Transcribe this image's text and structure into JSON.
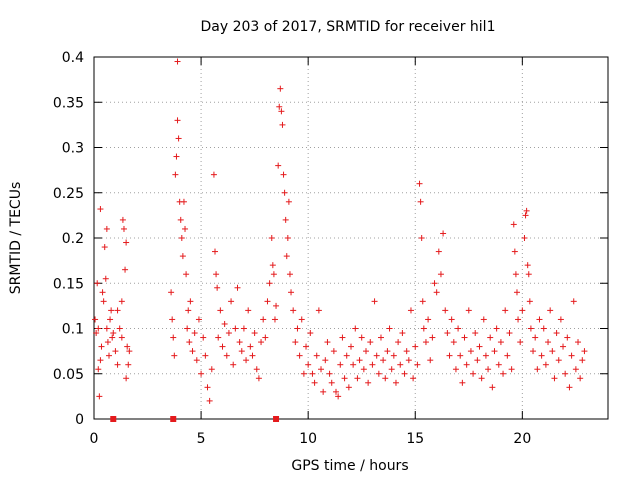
{
  "chart_data": {
    "type": "scatter",
    "title": "Day 203 of 2017, SRMTID for receiver hil1",
    "xlabel": "GPS time / hours",
    "ylabel": "SRMTID / TECUs",
    "xlim": [
      0,
      24
    ],
    "ylim": [
      0,
      0.4
    ],
    "xticks": [
      0,
      5,
      10,
      15,
      20
    ],
    "yticks": [
      0,
      0.05,
      0.1,
      0.15,
      0.2,
      0.25,
      0.3,
      0.35,
      0.4
    ],
    "xtick_labels": [
      "0",
      "5",
      "10",
      "15",
      "20"
    ],
    "ytick_labels": [
      "0",
      "0.05",
      "0.1",
      "0.15",
      "0.2",
      "0.25",
      "0.3",
      "0.35",
      "0.4"
    ],
    "grid": true,
    "marker": "+",
    "color": "#e41a1c",
    "square_marks_at_zero": [
      0.9,
      3.7,
      8.5
    ],
    "series": [
      {
        "points": [
          [
            0.05,
            0.11
          ],
          [
            0.1,
            0.095
          ],
          [
            0.15,
            0.15
          ],
          [
            0.2,
            0.055
          ],
          [
            0.25,
            0.025
          ],
          [
            0.3,
            0.232
          ],
          [
            0.35,
            0.08
          ],
          [
            0.4,
            0.14
          ],
          [
            0.45,
            0.13
          ],
          [
            0.5,
            0.19
          ],
          [
            0.55,
            0.155
          ],
          [
            0.6,
            0.21
          ],
          [
            0.65,
            0.085
          ],
          [
            0.7,
            0.07
          ],
          [
            0.75,
            0.11
          ],
          [
            0.8,
            0.12
          ],
          [
            0.85,
            0.09
          ],
          [
            1.0,
            0.075
          ],
          [
            1.1,
            0.12
          ],
          [
            1.2,
            0.1
          ],
          [
            1.3,
            0.09
          ],
          [
            1.35,
            0.22
          ],
          [
            1.4,
            0.21
          ],
          [
            1.45,
            0.165
          ],
          [
            1.5,
            0.195
          ],
          [
            1.55,
            0.08
          ],
          [
            1.6,
            0.06
          ],
          [
            1.65,
            0.075
          ],
          [
            1.5,
            0.045
          ],
          [
            1.3,
            0.13
          ],
          [
            0.2,
            0.1
          ],
          [
            0.3,
            0.065
          ],
          [
            0.6,
            0.1
          ],
          [
            0.9,
            0.095
          ],
          [
            1.1,
            0.06
          ],
          [
            3.6,
            0.14
          ],
          [
            3.65,
            0.11
          ],
          [
            3.7,
            0.09
          ],
          [
            3.75,
            0.07
          ],
          [
            3.8,
            0.27
          ],
          [
            3.85,
            0.29
          ],
          [
            3.9,
            0.395
          ],
          [
            3.9,
            0.33
          ],
          [
            3.95,
            0.31
          ],
          [
            4.0,
            0.24
          ],
          [
            4.05,
            0.22
          ],
          [
            4.1,
            0.2
          ],
          [
            4.15,
            0.18
          ],
          [
            4.2,
            0.24
          ],
          [
            4.25,
            0.21
          ],
          [
            4.3,
            0.16
          ],
          [
            4.35,
            0.1
          ],
          [
            4.4,
            0.12
          ],
          [
            4.45,
            0.085
          ],
          [
            4.5,
            0.13
          ],
          [
            4.6,
            0.075
          ],
          [
            4.7,
            0.095
          ],
          [
            4.8,
            0.065
          ],
          [
            4.9,
            0.11
          ],
          [
            5.0,
            0.05
          ],
          [
            5.1,
            0.09
          ],
          [
            5.2,
            0.07
          ],
          [
            5.3,
            0.035
          ],
          [
            5.4,
            0.02
          ],
          [
            5.5,
            0.055
          ],
          [
            5.6,
            0.27
          ],
          [
            5.65,
            0.185
          ],
          [
            5.7,
            0.16
          ],
          [
            5.75,
            0.145
          ],
          [
            5.8,
            0.09
          ],
          [
            5.9,
            0.12
          ],
          [
            6.0,
            0.08
          ],
          [
            6.1,
            0.105
          ],
          [
            6.2,
            0.07
          ],
          [
            6.3,
            0.095
          ],
          [
            6.4,
            0.13
          ],
          [
            6.5,
            0.06
          ],
          [
            6.6,
            0.1
          ],
          [
            6.7,
            0.145
          ],
          [
            6.8,
            0.085
          ],
          [
            6.9,
            0.075
          ],
          [
            7.0,
            0.1
          ],
          [
            7.1,
            0.065
          ],
          [
            7.2,
            0.12
          ],
          [
            7.3,
            0.08
          ],
          [
            7.4,
            0.07
          ],
          [
            7.5,
            0.095
          ],
          [
            7.6,
            0.055
          ],
          [
            7.7,
            0.045
          ],
          [
            7.8,
            0.085
          ],
          [
            7.9,
            0.11
          ],
          [
            8.0,
            0.09
          ],
          [
            8.1,
            0.13
          ],
          [
            8.2,
            0.15
          ],
          [
            8.3,
            0.2
          ],
          [
            8.35,
            0.17
          ],
          [
            8.4,
            0.16
          ],
          [
            8.45,
            0.11
          ],
          [
            8.5,
            0.125
          ],
          [
            8.6,
            0.28
          ],
          [
            8.65,
            0.345
          ],
          [
            8.7,
            0.365
          ],
          [
            8.75,
            0.34
          ],
          [
            8.8,
            0.325
          ],
          [
            8.85,
            0.27
          ],
          [
            8.9,
            0.25
          ],
          [
            8.95,
            0.22
          ],
          [
            9.0,
            0.18
          ],
          [
            9.05,
            0.2
          ],
          [
            9.1,
            0.24
          ],
          [
            9.15,
            0.16
          ],
          [
            9.2,
            0.14
          ],
          [
            9.3,
            0.12
          ],
          [
            9.4,
            0.085
          ],
          [
            9.5,
            0.1
          ],
          [
            9.6,
            0.07
          ],
          [
            9.7,
            0.11
          ],
          [
            9.8,
            0.05
          ],
          [
            9.9,
            0.08
          ],
          [
            10.0,
            0.06
          ],
          [
            10.1,
            0.095
          ],
          [
            10.2,
            0.05
          ],
          [
            10.3,
            0.04
          ],
          [
            10.4,
            0.07
          ],
          [
            10.5,
            0.12
          ],
          [
            10.6,
            0.055
          ],
          [
            10.7,
            0.03
          ],
          [
            10.8,
            0.065
          ],
          [
            10.9,
            0.085
          ],
          [
            11.0,
            0.05
          ],
          [
            11.1,
            0.04
          ],
          [
            11.2,
            0.075
          ],
          [
            11.3,
            0.03
          ],
          [
            11.4,
            0.025
          ],
          [
            11.5,
            0.06
          ],
          [
            11.6,
            0.09
          ],
          [
            11.7,
            0.045
          ],
          [
            11.8,
            0.07
          ],
          [
            11.9,
            0.035
          ],
          [
            12.0,
            0.08
          ],
          [
            12.1,
            0.06
          ],
          [
            12.2,
            0.1
          ],
          [
            12.3,
            0.045
          ],
          [
            12.4,
            0.065
          ],
          [
            12.5,
            0.09
          ],
          [
            12.6,
            0.055
          ],
          [
            12.7,
            0.075
          ],
          [
            12.8,
            0.04
          ],
          [
            12.9,
            0.085
          ],
          [
            13.0,
            0.06
          ],
          [
            13.1,
            0.13
          ],
          [
            13.2,
            0.07
          ],
          [
            13.3,
            0.05
          ],
          [
            13.4,
            0.09
          ],
          [
            13.5,
            0.065
          ],
          [
            13.6,
            0.045
          ],
          [
            13.7,
            0.075
          ],
          [
            13.8,
            0.1
          ],
          [
            13.9,
            0.055
          ],
          [
            14.0,
            0.07
          ],
          [
            14.1,
            0.04
          ],
          [
            14.2,
            0.085
          ],
          [
            14.3,
            0.06
          ],
          [
            14.4,
            0.095
          ],
          [
            14.5,
            0.05
          ],
          [
            14.6,
            0.075
          ],
          [
            14.7,
            0.065
          ],
          [
            14.8,
            0.12
          ],
          [
            14.9,
            0.045
          ],
          [
            15.0,
            0.08
          ],
          [
            15.1,
            0.06
          ],
          [
            15.2,
            0.26
          ],
          [
            15.25,
            0.24
          ],
          [
            15.3,
            0.2
          ],
          [
            15.35,
            0.13
          ],
          [
            15.4,
            0.1
          ],
          [
            15.5,
            0.085
          ],
          [
            15.6,
            0.11
          ],
          [
            15.7,
            0.065
          ],
          [
            15.8,
            0.09
          ],
          [
            15.9,
            0.15
          ],
          [
            16.0,
            0.14
          ],
          [
            16.1,
            0.185
          ],
          [
            16.2,
            0.16
          ],
          [
            16.3,
            0.205
          ],
          [
            16.4,
            0.12
          ],
          [
            16.5,
            0.095
          ],
          [
            16.6,
            0.07
          ],
          [
            16.7,
            0.11
          ],
          [
            16.8,
            0.085
          ],
          [
            16.9,
            0.055
          ],
          [
            17.0,
            0.1
          ],
          [
            17.1,
            0.07
          ],
          [
            17.2,
            0.04
          ],
          [
            17.3,
            0.09
          ],
          [
            17.4,
            0.06
          ],
          [
            17.5,
            0.12
          ],
          [
            17.6,
            0.075
          ],
          [
            17.7,
            0.05
          ],
          [
            17.8,
            0.095
          ],
          [
            17.9,
            0.065
          ],
          [
            18.0,
            0.08
          ],
          [
            18.1,
            0.045
          ],
          [
            18.2,
            0.11
          ],
          [
            18.3,
            0.07
          ],
          [
            18.4,
            0.055
          ],
          [
            18.5,
            0.09
          ],
          [
            18.6,
            0.035
          ],
          [
            18.7,
            0.075
          ],
          [
            18.8,
            0.1
          ],
          [
            18.9,
            0.06
          ],
          [
            19.0,
            0.085
          ],
          [
            19.1,
            0.05
          ],
          [
            19.2,
            0.12
          ],
          [
            19.3,
            0.07
          ],
          [
            19.4,
            0.095
          ],
          [
            19.5,
            0.055
          ],
          [
            19.6,
            0.215
          ],
          [
            19.65,
            0.185
          ],
          [
            19.7,
            0.16
          ],
          [
            19.75,
            0.14
          ],
          [
            19.8,
            0.11
          ],
          [
            19.9,
            0.085
          ],
          [
            20.0,
            0.12
          ],
          [
            20.1,
            0.2
          ],
          [
            20.15,
            0.225
          ],
          [
            20.2,
            0.23
          ],
          [
            20.25,
            0.17
          ],
          [
            20.3,
            0.16
          ],
          [
            20.35,
            0.13
          ],
          [
            20.4,
            0.1
          ],
          [
            20.5,
            0.075
          ],
          [
            20.6,
            0.09
          ],
          [
            20.7,
            0.055
          ],
          [
            20.8,
            0.11
          ],
          [
            20.9,
            0.07
          ],
          [
            21.0,
            0.1
          ],
          [
            21.1,
            0.06
          ],
          [
            21.2,
            0.085
          ],
          [
            21.3,
            0.12
          ],
          [
            21.4,
            0.075
          ],
          [
            21.5,
            0.045
          ],
          [
            21.6,
            0.095
          ],
          [
            21.7,
            0.065
          ],
          [
            21.8,
            0.11
          ],
          [
            21.9,
            0.08
          ],
          [
            22.0,
            0.05
          ],
          [
            22.1,
            0.09
          ],
          [
            22.2,
            0.035
          ],
          [
            22.3,
            0.07
          ],
          [
            22.4,
            0.13
          ],
          [
            22.5,
            0.055
          ],
          [
            22.6,
            0.085
          ],
          [
            22.7,
            0.045
          ],
          [
            22.8,
            0.065
          ],
          [
            22.9,
            0.075
          ]
        ]
      }
    ]
  }
}
